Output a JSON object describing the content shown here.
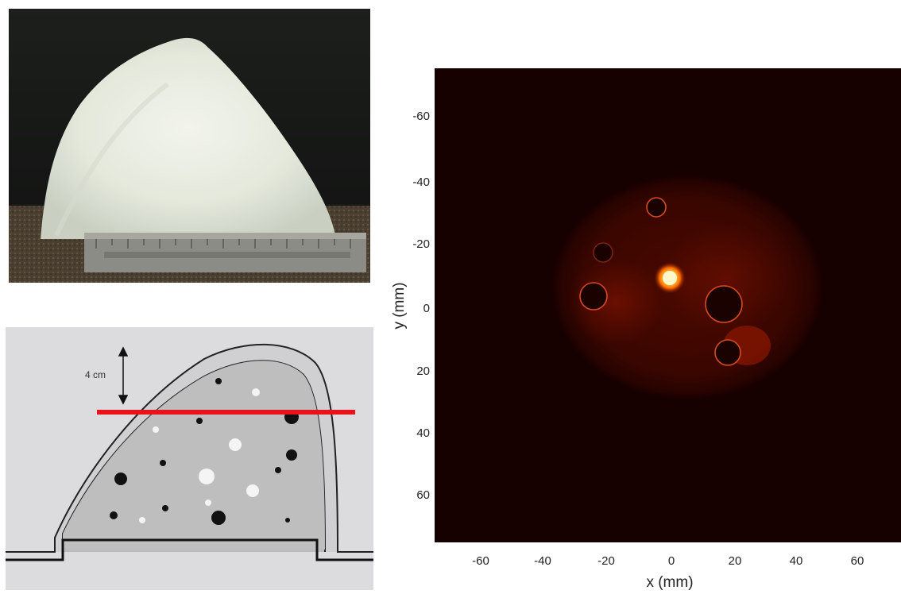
{
  "photo": {
    "ruler_text": ""
  },
  "diagram": {
    "annotation": "4 cm",
    "slice_line_color": "#e8121a"
  },
  "image_panel": {
    "x_axis": {
      "label": "x (mm)",
      "ticks": [
        "-60",
        "-40",
        "-20",
        "0",
        "20",
        "40",
        "60"
      ],
      "values": [
        -60,
        -40,
        -20,
        0,
        20,
        40,
        60
      ]
    },
    "y_axis": {
      "label": "y (mm)",
      "ticks": [
        "-60",
        "-40",
        "-20",
        "0",
        "20",
        "40",
        "60"
      ],
      "values": [
        -60,
        -40,
        -20,
        0,
        20,
        40,
        60
      ]
    },
    "colormap": "hot"
  }
}
